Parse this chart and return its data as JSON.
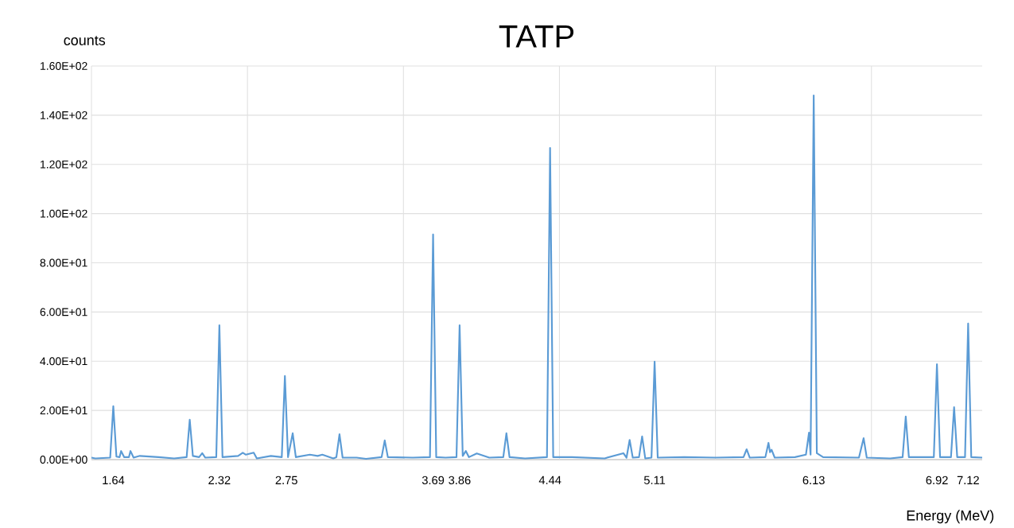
{
  "chart_data": {
    "type": "line",
    "title": "TATP",
    "xlabel": "Energy (MeV)",
    "ylabel": "counts",
    "xlim": [
      1.5,
      7.21
    ],
    "ylim": [
      0,
      160
    ],
    "xticks": [
      {
        "value": 1.5,
        "label": null
      },
      {
        "value": 2.5,
        "label": null
      },
      {
        "value": 3.5,
        "label": null
      },
      {
        "value": 4.5,
        "label": null
      },
      {
        "value": 5.5,
        "label": null
      },
      {
        "value": 6.5,
        "label": null
      },
      {
        "value": 1.64,
        "label": "1.64"
      },
      {
        "value": 2.32,
        "label": "2.32"
      },
      {
        "value": 2.75,
        "label": "2.75"
      },
      {
        "value": 3.69,
        "label": "3.69"
      },
      {
        "value": 3.86,
        "label": "3.86"
      },
      {
        "value": 4.44,
        "label": "4.44"
      },
      {
        "value": 5.11,
        "label": "5.11"
      },
      {
        "value": 6.13,
        "label": "6.13"
      },
      {
        "value": 6.92,
        "label": "6.92"
      },
      {
        "value": 7.12,
        "label": "7.12"
      }
    ],
    "yticks": [
      {
        "value": 0,
        "label": "0.00E+00"
      },
      {
        "value": 20,
        "label": "2.00E+01"
      },
      {
        "value": 40,
        "label": "4.00E+01"
      },
      {
        "value": 60,
        "label": "6.00E+01"
      },
      {
        "value": 80,
        "label": "8.00E+01"
      },
      {
        "value": 100,
        "label": "1.00E+02"
      },
      {
        "value": 120,
        "label": "1.20E+02"
      },
      {
        "value": 140,
        "label": "1.40E+02"
      },
      {
        "value": 160,
        "label": "1.60E+02"
      }
    ],
    "grid": true,
    "marker": "none",
    "line_style": "solid",
    "series": [
      {
        "color": "#5b9bd5",
        "x": [
          1.5,
          1.525,
          1.62,
          1.64,
          1.66,
          1.68,
          1.69,
          1.71,
          1.74,
          1.75,
          1.77,
          1.81,
          1.93,
          2.03,
          2.11,
          2.13,
          2.15,
          2.19,
          2.21,
          2.23,
          2.3,
          2.32,
          2.34,
          2.44,
          2.47,
          2.49,
          2.54,
          2.56,
          2.65,
          2.72,
          2.74,
          2.76,
          2.79,
          2.81,
          2.9,
          2.95,
          2.98,
          3.05,
          3.07,
          3.09,
          3.11,
          3.2,
          3.26,
          3.36,
          3.38,
          3.4,
          3.56,
          3.67,
          3.69,
          3.71,
          3.77,
          3.84,
          3.86,
          3.88,
          3.9,
          3.92,
          3.97,
          4.05,
          4.14,
          4.16,
          4.18,
          4.28,
          4.42,
          4.44,
          4.46,
          4.58,
          4.79,
          4.91,
          4.93,
          4.95,
          4.97,
          5.01,
          5.03,
          5.05,
          5.09,
          5.11,
          5.13,
          5.3,
          5.5,
          5.68,
          5.7,
          5.72,
          5.82,
          5.84,
          5.85,
          5.86,
          5.88,
          6.01,
          6.08,
          6.1,
          6.11,
          6.13,
          6.15,
          6.19,
          6.42,
          6.45,
          6.47,
          6.62,
          6.7,
          6.72,
          6.74,
          6.9,
          6.92,
          6.94,
          7.01,
          7.03,
          7.05,
          7.1,
          7.12,
          7.14,
          7.21
        ],
        "values": [
          0.8,
          0.5,
          0.8,
          21.7,
          1.2,
          1,
          3.5,
          1,
          1,
          3.5,
          0.8,
          1.5,
          1,
          0.5,
          1,
          16.2,
          1.5,
          1,
          2.6,
          0.8,
          1,
          54.6,
          1,
          1.5,
          2.8,
          2,
          2.8,
          0.5,
          1.5,
          1,
          34,
          1,
          10.7,
          1,
          2,
          1.5,
          2,
          0.5,
          1,
          10.3,
          0.8,
          0.8,
          0.3,
          1,
          7.8,
          1,
          0.8,
          1,
          91.5,
          1,
          0.8,
          1,
          54.6,
          1.5,
          3.5,
          1,
          2.5,
          0.8,
          1,
          10.7,
          1,
          0.5,
          1,
          126.7,
          1,
          1,
          0.5,
          2.6,
          0.8,
          8,
          0.8,
          1,
          9.4,
          0.5,
          0.8,
          39.8,
          0.8,
          1,
          0.8,
          1,
          4.2,
          0.8,
          1,
          6.8,
          3,
          4,
          0.8,
          1,
          2,
          11,
          2,
          148,
          2.6,
          1,
          0.8,
          8.7,
          0.8,
          0.5,
          1,
          17.5,
          1,
          1,
          38.8,
          1,
          1,
          21.3,
          1,
          1,
          55.3,
          1,
          0.8
        ]
      }
    ]
  }
}
